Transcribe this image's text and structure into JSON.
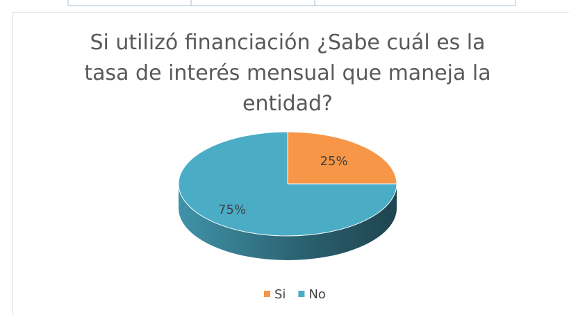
{
  "chart_data": {
    "type": "pie",
    "title": "Si utilizó financiación ¿Sabe cuál es la tasa de interés mensual que maneja la entidad?",
    "categories": [
      "Si",
      "No"
    ],
    "values": [
      25,
      75
    ],
    "value_labels": [
      "25%",
      "75%"
    ],
    "colors": [
      "#f79646",
      "#4bacc6"
    ],
    "legend": "bottom"
  }
}
